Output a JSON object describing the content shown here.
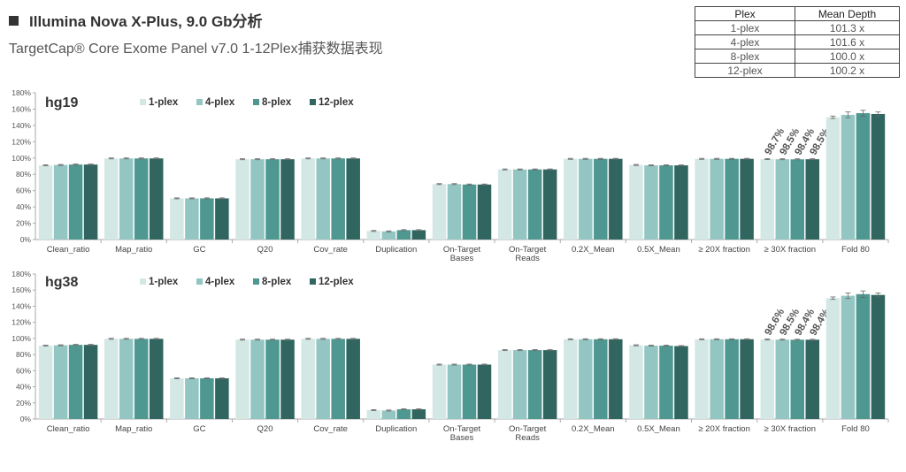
{
  "header": {
    "title": "Illumina Nova X-Plus, 9.0 Gb分析",
    "subtitle": "TargetCap® Core Exome Panel v7.0 1-12Plex捕获数据表现"
  },
  "depth_table": {
    "headers": [
      "Plex",
      "Mean Depth"
    ],
    "rows": [
      [
        "1-plex",
        "101.3 x"
      ],
      [
        "4-plex",
        "101.6 x"
      ],
      [
        "8-plex",
        "100.0 x"
      ],
      [
        "12-plex",
        "100.2 x"
      ]
    ]
  },
  "colors": [
    "#d3e8e5",
    "#93c6c2",
    "#4f9791",
    "#306560"
  ],
  "chart_data": [
    {
      "type": "bar",
      "title": "hg19",
      "categories": [
        "Clean_ratio",
        "Map_ratio",
        "GC",
        "Q20",
        "Cov_rate",
        "Duplication",
        "On-Target Bases",
        "On-Target Reads",
        "0.2X_Mean",
        "0.5X_Mean",
        "≥ 20X fraction",
        "≥ 30X fraction",
        "Fold 80"
      ],
      "series": [
        {
          "name": "1-plex",
          "values": [
            91,
            99.5,
            50.5,
            98.5,
            99.5,
            10.5,
            68,
            86,
            99,
            91.5,
            99,
            98.7,
            150
          ]
        },
        {
          "name": "4-plex",
          "values": [
            91.5,
            99.5,
            50.5,
            98.5,
            99.5,
            10.0,
            68,
            86,
            99,
            91.0,
            99,
            98.5,
            153
          ]
        },
        {
          "name": "8-plex",
          "values": [
            92,
            99.5,
            50.5,
            98.5,
            99.5,
            11.5,
            67.5,
            86,
            99,
            91.0,
            99,
            98.4,
            155
          ]
        },
        {
          "name": "12-plex",
          "values": [
            92,
            99.5,
            50.5,
            98.5,
            99.5,
            11.5,
            67.5,
            86,
            99,
            91.0,
            99,
            98.5,
            154
          ]
        }
      ],
      "errors": {
        "Fold 80": [
          1.5,
          3.5,
          3.5,
          2.5
        ]
      },
      "annotations": {
        "≥ 30X fraction": [
          "98.7%",
          "98.5%",
          "98.4%",
          "98.5%"
        ]
      },
      "ylim": [
        0,
        180
      ],
      "yticks": [
        "0%",
        "20%",
        "40%",
        "60%",
        "80%",
        "100%",
        "120%",
        "140%",
        "160%",
        "180%"
      ],
      "legend": "top"
    },
    {
      "type": "bar",
      "title": "hg38",
      "categories": [
        "Clean_ratio",
        "Map_ratio",
        "GC",
        "Q20",
        "Cov_rate",
        "Duplication",
        "On-Target Bases",
        "On-Target Reads",
        "0.2X_Mean",
        "0.5X_Mean",
        "≥ 20X fraction",
        "≥ 30X fraction",
        "Fold 80"
      ],
      "series": [
        {
          "name": "1-plex",
          "values": [
            91,
            99.5,
            50.5,
            98.5,
            99.5,
            11.0,
            67.5,
            85.5,
            99,
            91.5,
            99,
            98.6,
            150
          ]
        },
        {
          "name": "4-plex",
          "values": [
            91.5,
            99.5,
            50.5,
            98.5,
            99.5,
            10.5,
            67.5,
            85.5,
            99,
            91.0,
            99,
            98.5,
            153
          ]
        },
        {
          "name": "8-plex",
          "values": [
            92,
            99.5,
            50.5,
            98.5,
            99.5,
            12.0,
            67.5,
            85.5,
            99,
            91.0,
            99,
            98.4,
            155
          ]
        },
        {
          "name": "12-plex",
          "values": [
            92,
            99.5,
            50.5,
            98.5,
            99.5,
            12.0,
            67.5,
            85.5,
            99,
            90.5,
            99,
            98.4,
            154
          ]
        }
      ],
      "errors": {
        "Fold 80": [
          1.5,
          3.5,
          4.0,
          2.5
        ]
      },
      "annotations": {
        "≥ 30X fraction": [
          "98.6%",
          "98.5%",
          "98.4%",
          "98.4%"
        ]
      },
      "ylim": [
        0,
        180
      ],
      "yticks": [
        "0%",
        "20%",
        "40%",
        "60%",
        "80%",
        "100%",
        "120%",
        "140%",
        "160%",
        "180%"
      ],
      "legend": "top"
    }
  ]
}
